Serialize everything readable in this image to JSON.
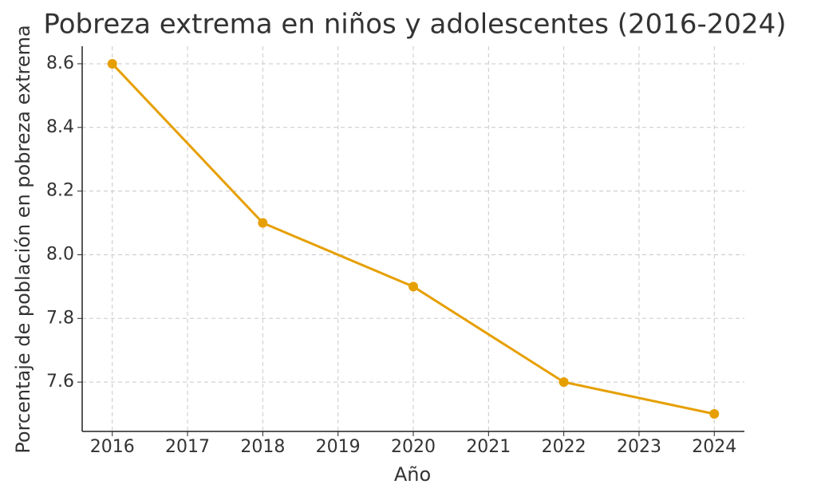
{
  "chart_data": {
    "type": "line",
    "title": "Pobreza extrema en niños y adolescentes (2016-2024)",
    "x_label": "Año",
    "y_label": "Porcentaje de población en pobreza extrema",
    "x": [
      2016,
      2018,
      2020,
      2022,
      2024
    ],
    "series": [
      {
        "color": "#e69f00",
        "values": [
          8.6,
          8.1,
          7.9,
          7.6,
          7.5
        ]
      }
    ],
    "xlim": [
      2015.6,
      2024.4
    ],
    "xticks": [
      2016,
      2017,
      2018,
      2019,
      2020,
      2021,
      2022,
      2023,
      2024
    ],
    "ylim": [
      7.445,
      8.655
    ],
    "yticks": [
      7.6,
      7.8,
      {
        "value": 8,
        "label": "8.0"
      },
      8.2,
      8.4,
      8.6
    ],
    "grid": true
  }
}
